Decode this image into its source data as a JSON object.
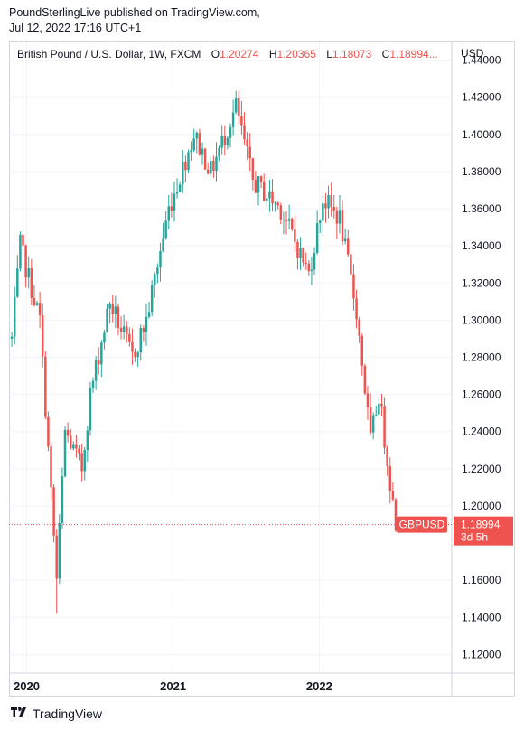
{
  "header": {
    "line1": "PoundSterlingLive published on TradingView.com,",
    "line2": "Jul 12, 2022 17:16 UTC+1"
  },
  "legend": {
    "symbol": "British Pound / U.S. Dollar, 1W, FXCM",
    "o_label": "O",
    "o_value": "1.20274",
    "h_label": "H",
    "h_value": "1.20365",
    "l_label": "L",
    "l_value": "1.18073",
    "c_label": "C",
    "c_value": "1.18994..."
  },
  "currency": "USD",
  "footer": {
    "brand": "TradingView",
    "icon": "tradingview-logo-icon"
  },
  "colors": {
    "up": "#26a69a",
    "down": "#ef5350",
    "grid": "#f0f3fa",
    "text": "#131722"
  },
  "chart_data": {
    "type": "candlestick",
    "title": "British Pound / U.S. Dollar, 1W, FXCM",
    "ylim": [
      1.11,
      1.45
    ],
    "yticks": [
      "1.44000",
      "1.42000",
      "1.40000",
      "1.38000",
      "1.36000",
      "1.34000",
      "1.32000",
      "1.30000",
      "1.28000",
      "1.26000",
      "1.24000",
      "1.22000",
      "1.20000",
      "1.16000",
      "1.14000",
      "1.12000"
    ],
    "xticks": [
      {
        "label": "2020",
        "x": "2020-01-01"
      },
      {
        "label": "2021",
        "x": "2021-01-01"
      },
      {
        "label": "2022",
        "x": "2022-01-01"
      }
    ],
    "xlim": [
      "2019-11-18",
      "2022-11-28"
    ],
    "last_price": {
      "symbol": "GBPUSD",
      "value": "1.18994",
      "countdown": "3d 5h",
      "y": 1.18994
    },
    "key_points": [
      {
        "x": "2019-11-25",
        "y": 1.29
      },
      {
        "x": "2019-12-16",
        "y": 1.34
      },
      {
        "x": "2020-02-03",
        "y": 1.3
      },
      {
        "x": "2020-03-16",
        "y": 1.16
      },
      {
        "x": "2020-04-06",
        "y": 1.24
      },
      {
        "x": "2020-05-18",
        "y": 1.22
      },
      {
        "x": "2020-06-08",
        "y": 1.26
      },
      {
        "x": "2020-07-27",
        "y": 1.31
      },
      {
        "x": "2020-09-21",
        "y": 1.28
      },
      {
        "x": "2020-10-26",
        "y": 1.3
      },
      {
        "x": "2020-12-21",
        "y": 1.36
      },
      {
        "x": "2021-02-22",
        "y": 1.4
      },
      {
        "x": "2021-04-05",
        "y": 1.38
      },
      {
        "x": "2021-06-07",
        "y": 1.415
      },
      {
        "x": "2021-07-19",
        "y": 1.375
      },
      {
        "x": "2021-09-27",
        "y": 1.36
      },
      {
        "x": "2021-12-06",
        "y": 1.325
      },
      {
        "x": "2022-01-10",
        "y": 1.365
      },
      {
        "x": "2022-02-21",
        "y": 1.355
      },
      {
        "x": "2022-04-04",
        "y": 1.305
      },
      {
        "x": "2022-05-09",
        "y": 1.235
      },
      {
        "x": "2022-05-30",
        "y": 1.26
      },
      {
        "x": "2022-06-20",
        "y": 1.225
      },
      {
        "x": "2022-07-11",
        "y": 1.19
      }
    ]
  }
}
